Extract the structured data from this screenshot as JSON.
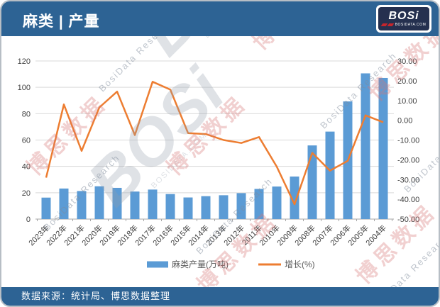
{
  "header": {
    "title": "麻类 | 产量",
    "logo": {
      "text": "BOSi",
      "subtext": "BOSIDATA.COM"
    }
  },
  "footer": {
    "source": "数据来源：统计局、博思数据整理"
  },
  "watermark": {
    "cn": "博思数据",
    "en": "BosiData Research",
    "logo_text": "BOSi",
    "logo_sub": "BOSIDATA.COM"
  },
  "colors": {
    "header_bar": "#2d6394",
    "bar_fill": "#5b9bd5",
    "line_stroke": "#ed7d31",
    "gridline": "#d9d9d9",
    "axis_line": "#a6a6a6",
    "tick_text": "#404040",
    "legend_text": "#595959"
  },
  "chart_data": {
    "type": "bar+line combo",
    "title": "麻类 | 产量",
    "categories": [
      "2023年",
      "2022年",
      "2021年",
      "2020年",
      "2019年",
      "2018年",
      "2017年",
      "2016年",
      "2015年",
      "2014年",
      "2013年",
      "2012年",
      "2011年",
      "2010年",
      "2009年",
      "2008年",
      "2007年",
      "2006年",
      "2005年",
      "2004年"
    ],
    "series": [
      {
        "name": "麻类产量(万吨)",
        "type": "bar",
        "axis": "left",
        "color": "#5b9bd5",
        "values": [
          16.3,
          23.2,
          21.3,
          24.9,
          23.7,
          20.9,
          22.4,
          19.0,
          16.4,
          17.4,
          18.1,
          19.7,
          22.9,
          24.7,
          32.3,
          55.9,
          66.4,
          89.3,
          110.6,
          107.1
        ]
      },
      {
        "name": "增长(%)",
        "type": "line",
        "axis": "right",
        "color": "#ed7d31",
        "values": [
          -29.0,
          8.0,
          -15.5,
          6.5,
          14.5,
          -7.5,
          19.5,
          15.5,
          -6.5,
          -7.0,
          -10.0,
          -11.5,
          -8.5,
          -23.5,
          -42.5,
          -16.5,
          -25.5,
          -20.5,
          2.5,
          -1.0
        ]
      }
    ],
    "left_axis": {
      "min": 0,
      "max": 120,
      "step": 20,
      "decimals": 0
    },
    "right_axis": {
      "min": -50,
      "max": 30,
      "step": 10,
      "decimals": 2
    },
    "grid": true,
    "legend_position": "bottom"
  }
}
